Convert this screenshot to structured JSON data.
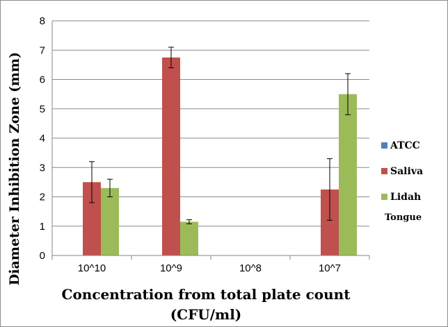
{
  "chart_data": {
    "type": "bar",
    "title": "",
    "xlabel_line1": "Concentration from total plate count",
    "xlabel_line2": "(CFU/ml)",
    "ylabel": "Diameter Inhibition Zone (mm)",
    "categories": [
      "10^10",
      "10^9",
      "10^8",
      "10^7"
    ],
    "ylim": [
      0,
      8
    ],
    "yticks": [
      0,
      1,
      2,
      3,
      4,
      5,
      6,
      7,
      8
    ],
    "grid": true,
    "legend_position": "right",
    "series": [
      {
        "name": "ATCC",
        "color": "#4f81bd",
        "values": [
          0,
          0,
          0,
          0
        ],
        "errors": [
          0,
          0,
          0,
          0
        ]
      },
      {
        "name": "Saliva",
        "color": "#c0504d",
        "values": [
          2.5,
          6.75,
          0,
          2.25
        ],
        "errors": [
          0.7,
          0.35,
          0,
          1.05
        ]
      },
      {
        "name": "Lidah",
        "color": "#9bbb59",
        "values": [
          2.3,
          1.15,
          0,
          5.5
        ],
        "errors": [
          0.3,
          0.07,
          0,
          0.7
        ]
      }
    ],
    "annotation": "Tongue"
  }
}
